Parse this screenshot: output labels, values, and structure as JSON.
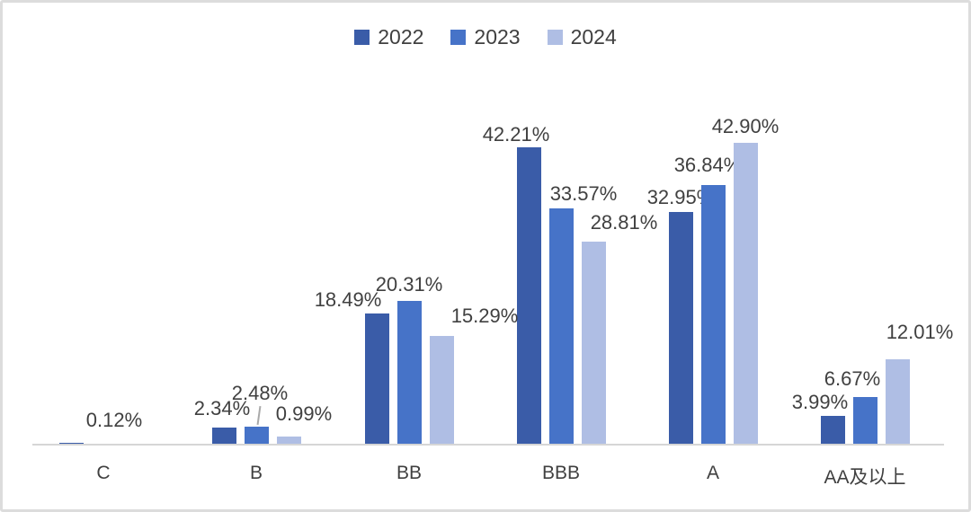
{
  "chart_data": {
    "type": "bar",
    "title": "",
    "xlabel": "",
    "ylabel": "",
    "categories": [
      "C",
      "B",
      "BB",
      "BBB",
      "A",
      "AA及以上"
    ],
    "series": [
      {
        "name": "2022",
        "color": "#3A5CA8",
        "values": [
          0.12,
          2.34,
          18.49,
          42.21,
          32.95,
          3.99
        ],
        "labels": [
          "0.12%",
          "2.34%",
          "18.49%",
          "42.21%",
          "32.95%",
          "3.99%"
        ]
      },
      {
        "name": "2023",
        "color": "#4673C8",
        "values": [
          null,
          2.48,
          20.31,
          33.57,
          36.84,
          6.67
        ],
        "labels": [
          "",
          "2.48%",
          "20.31%",
          "33.57%",
          "36.84%",
          "6.67%"
        ]
      },
      {
        "name": "2024",
        "color": "#AFBEE4",
        "values": [
          null,
          0.99,
          15.29,
          28.81,
          42.9,
          12.01
        ],
        "labels": [
          "",
          "0.99%",
          "15.29%",
          "28.81%",
          "42.90%",
          "12.01%"
        ]
      }
    ],
    "legend": [
      "2022",
      "2023",
      "2024"
    ],
    "legend_position": "top-center",
    "ylim": [
      0,
      45
    ],
    "grid": false,
    "y_axis_visible": false,
    "axis_line_color": "#D6D6D6",
    "label_color": "#404040",
    "background": "#FFFFFF",
    "layout_hints": {
      "label_offsets": {
        "2022": [
          [
            48,
            13
          ],
          [
            -2,
            9
          ],
          [
            -32,
            3
          ],
          [
            -14,
            2
          ],
          [
            0,
            4
          ],
          [
            -14,
            3
          ]
        ],
        "2023": [
          [
            0,
            0
          ],
          [
            4,
            25
          ],
          [
            0,
            6
          ],
          [
            25,
            4
          ],
          [
            -6,
            10
          ],
          [
            -14,
            8
          ]
        ],
        "2024": [
          [
            0,
            0
          ],
          [
            17,
            13
          ],
          [
            48,
            10
          ],
          [
            34,
            9
          ],
          [
            0,
            6
          ],
          [
            25,
            18
          ]
        ]
      },
      "leader_lines": [
        {
          "series_index": 1,
          "category_index": 1
        }
      ]
    }
  }
}
